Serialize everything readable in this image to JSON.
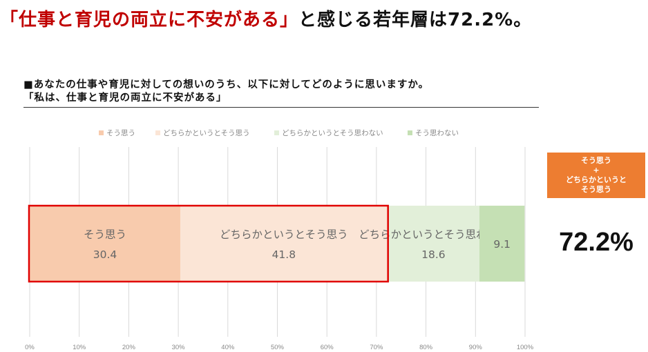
{
  "headline": {
    "red": "「仕事と育児の両立に不安がある」",
    "black": "と感じる若年層は72.2%。"
  },
  "question": {
    "line1": "■あなたの仕事や育児に対しての想いのうち、以下に対してどのように思いますか。",
    "line2": "「私は、仕事と育児の両立に不安がある」"
  },
  "callout": {
    "line1": "そう思う",
    "line2": "+",
    "line3": "どちらかというと",
    "line4": "そう思う"
  },
  "total": "72.2%",
  "chart_data": {
    "type": "bar",
    "orientation": "horizontal-stacked",
    "categories": [
      ""
    ],
    "series": [
      {
        "name": "そう思う",
        "values": [
          30.4
        ],
        "color": "#f8cbad",
        "label": "30.4"
      },
      {
        "name": "どちらかというとそう思う",
        "values": [
          41.8
        ],
        "color": "#fbe5d6",
        "label": "41.8"
      },
      {
        "name": "どちらかというとそう思わない",
        "values": [
          18.6
        ],
        "color": "#e2efd9",
        "label": "18.6"
      },
      {
        "name": "そう思わない",
        "values": [
          9.1
        ],
        "color": "#c5e0b4",
        "label": "9.1"
      }
    ],
    "xlim": [
      0,
      100
    ],
    "xticks": [
      "0%",
      "10%",
      "20%",
      "30%",
      "40%",
      "50%",
      "60%",
      "70%",
      "80%",
      "90%",
      "100%"
    ],
    "grid": true,
    "legend": "top",
    "highlight": {
      "from": 0,
      "to": 72.2,
      "color": "#e00000"
    }
  }
}
